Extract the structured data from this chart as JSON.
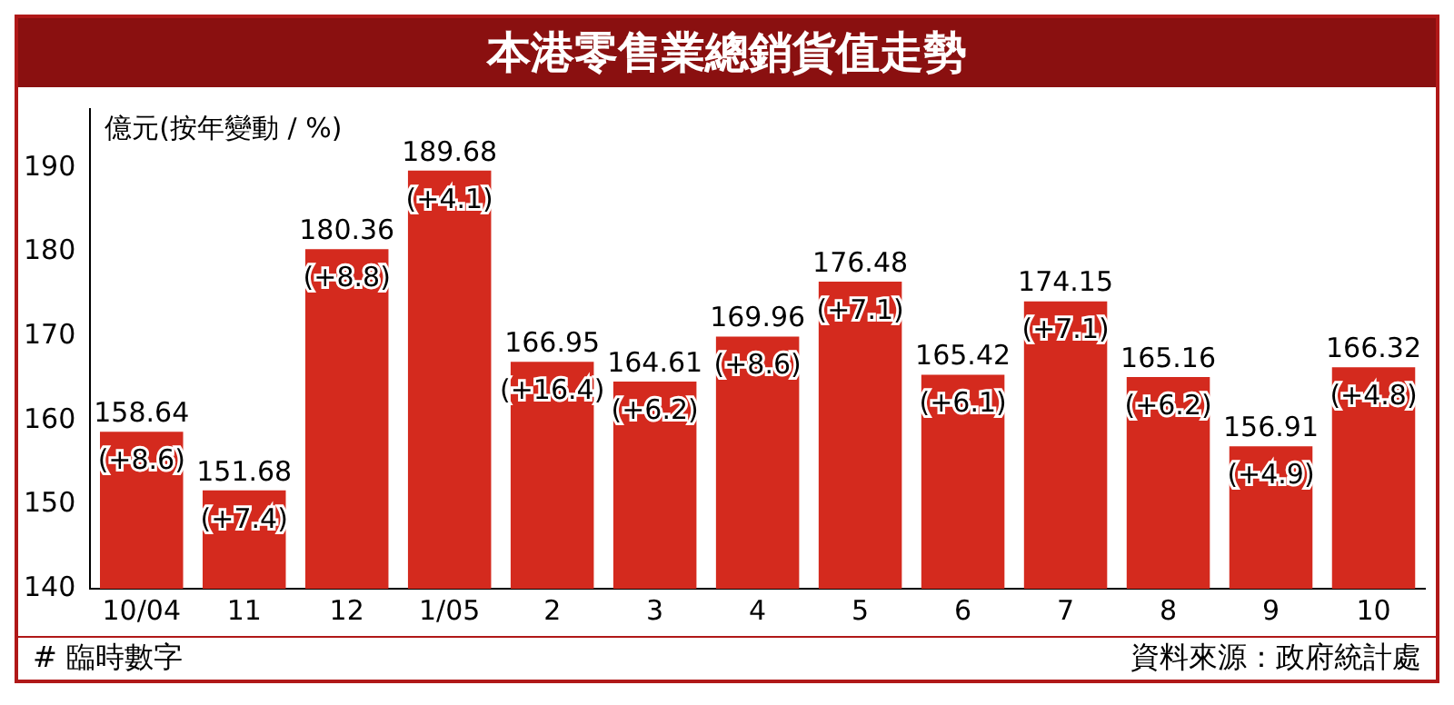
{
  "chart_data": {
    "type": "bar",
    "title": "本港零售業總銷貨值走勢",
    "ylabel": "億元(按年變動 / %)",
    "categories": [
      "10/04",
      "11",
      "12",
      "1/05",
      "2",
      "3",
      "4",
      "5",
      "6",
      "7",
      "8",
      "9",
      "10"
    ],
    "values": [
      158.64,
      151.68,
      180.36,
      189.68,
      166.95,
      164.61,
      169.96,
      176.48,
      165.42,
      174.15,
      165.16,
      156.91,
      166.32
    ],
    "color": "#d42a1e",
    "ylim": [
      140,
      197
    ],
    "yticks": [
      140,
      150,
      160,
      170,
      180,
      190
    ],
    "grid": false,
    "data_labels": true,
    "annotations": [
      {
        "text": "(+8.6)",
        "x": "10/04",
        "y": 158.64
      },
      {
        "text": "(+7.4)",
        "x": "11",
        "y": 151.68
      },
      {
        "text": "(+8.8)",
        "x": "12",
        "y": 180.36
      },
      {
        "text": "(+4.1)",
        "x": "1/05",
        "y": 189.68
      },
      {
        "text": "(+16.4)",
        "x": "2",
        "y": 166.95
      },
      {
        "text": "(+6.2)",
        "x": "3",
        "y": 164.61
      },
      {
        "text": "(+8.6)",
        "x": "4",
        "y": 169.96
      },
      {
        "text": "(+7.1)",
        "x": "5",
        "y": 176.48
      },
      {
        "text": "(+6.1)",
        "x": "6",
        "y": 165.42
      },
      {
        "text": "(+7.1)",
        "x": "7",
        "y": 174.15
      },
      {
        "text": "(+6.2)",
        "x": "8",
        "y": 165.16
      },
      {
        "text": "(+4.9)",
        "x": "9",
        "y": 156.91
      },
      {
        "text": "(+4.8)",
        "x": "10",
        "y": 166.32
      },
      "# 臨時數字",
      "資料來源：政府統計處"
    ]
  }
}
